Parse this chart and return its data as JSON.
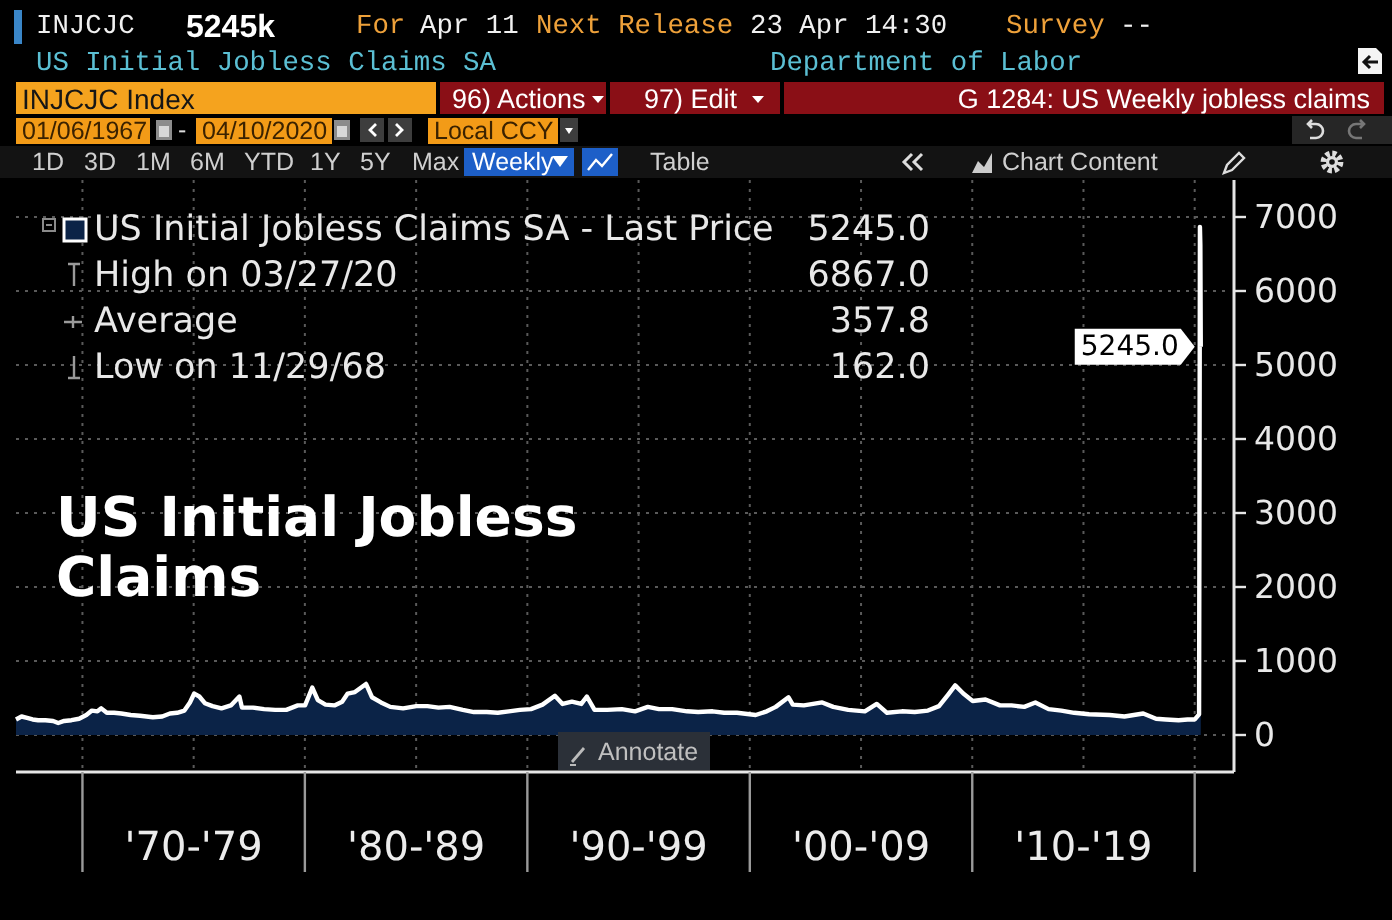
{
  "chart_data": {
    "type": "area",
    "title": "US Initial Jobless Claims",
    "x": [
      "1967-01-06",
      "1967-04-07",
      "1967-07-07",
      "1967-10-06",
      "1968-01-05",
      "1968-05-03",
      "1968-09-06",
      "1968-11-29",
      "1969-03-07",
      "1969-07-04",
      "1969-11-07",
      "1970-03-06",
      "1970-06-05",
      "1970-09-04",
      "1970-11-06",
      "1971-02-05",
      "1971-06-04",
      "1971-10-01",
      "1972-03-03",
      "1972-08-04",
      "1973-03-02",
      "1973-08-03",
      "1973-12-07",
      "1974-04-05",
      "1974-08-02",
      "1974-11-01",
      "1975-01-10",
      "1975-04-04",
      "1975-07-04",
      "1975-11-07",
      "1976-04-02",
      "1976-09-03",
      "1977-01-21",
      "1977-03-04",
      "1977-09-02",
      "1978-03-03",
      "1978-09-01",
      "1979-03-02",
      "1979-09-07",
      "1980-01-04",
      "1980-05-02",
      "1980-08-01",
      "1980-12-05",
      "1981-05-01",
      "1981-09-04",
      "1981-12-04",
      "1982-04-02",
      "1982-10-01",
      "1983-01-07",
      "1983-06-03",
      "1983-11-04",
      "1984-06-01",
      "1985-01-04",
      "1985-07-05",
      "1986-01-03",
      "1986-07-04",
      "1987-02-06",
      "1987-08-07",
      "1988-03-04",
      "1988-09-02",
      "1989-03-03",
      "1989-09-01",
      "1990-03-02",
      "1990-09-07",
      "1991-03-29",
      "1991-08-02",
      "1992-01-03",
      "1992-06-05",
      "1992-09-04",
      "1993-01-08",
      "1993-08-06",
      "1994-04-01",
      "1994-11-04",
      "1995-06-02",
      "1995-12-01",
      "1996-07-05",
      "1997-03-07",
      "1997-09-05",
      "1998-05-01",
      "1998-11-06",
      "1999-06-04",
      "2000-04-07",
      "2000-10-06",
      "2001-03-02",
      "2001-09-28",
      "2001-12-07",
      "2002-06-07",
      "2003-04-04",
      "2003-10-03",
      "2004-06-04",
      "2005-03-04",
      "2005-09-16",
      "2006-03-03",
      "2006-11-03",
      "2007-06-01",
      "2008-01-04",
      "2008-07-04",
      "2008-12-05",
      "2009-03-27",
      "2009-08-07",
      "2010-01-08",
      "2010-08-06",
      "2011-04-01",
      "2011-10-07",
      "2012-05-04",
      "2012-11-02",
      "2013-06-07",
      "2014-01-03",
      "2014-08-01",
      "2015-04-03",
      "2016-03-04",
      "2016-11-04",
      "2017-09-08",
      "2018-04-06",
      "2018-09-14",
      "2019-04-12",
      "2019-09-06",
      "2020-01-03",
      "2020-03-13",
      "2020-03-20",
      "2020-03-27",
      "2020-04-03",
      "2020-04-10"
    ],
    "series": [
      {
        "name": "US Initial Jobless Claims SA - Last Price",
        "color": "#0b2347",
        "values": [
          210,
          250,
          230,
          210,
          200,
          200,
          190,
          162,
          190,
          200,
          220,
          270,
          330,
          320,
          360,
          300,
          300,
          290,
          270,
          260,
          240,
          250,
          290,
          300,
          330,
          440,
          560,
          520,
          430,
          390,
          360,
          400,
          520,
          370,
          370,
          350,
          340,
          340,
          400,
          400,
          640,
          470,
          410,
          400,
          450,
          560,
          580,
          690,
          510,
          440,
          380,
          360,
          390,
          390,
          370,
          380,
          340,
          310,
          310,
          300,
          320,
          340,
          350,
          410,
          530,
          420,
          450,
          420,
          520,
          340,
          340,
          350,
          320,
          380,
          350,
          350,
          320,
          310,
          320,
          300,
          300,
          270,
          320,
          380,
          510,
          410,
          400,
          440,
          380,
          340,
          320,
          420,
          300,
          320,
          310,
          330,
          390,
          550,
          670,
          560,
          460,
          480,
          400,
          400,
          380,
          440,
          350,
          330,
          300,
          280,
          270,
          250,
          290,
          220,
          210,
          200,
          210,
          210,
          280,
          3300,
          6867,
          6620,
          5245
        ],
        "value_labels": [
          null,
          null,
          null,
          null,
          null,
          null,
          null,
          null,
          null,
          null,
          null,
          null,
          null,
          null,
          null,
          null,
          null,
          null,
          null,
          null,
          null,
          null,
          null,
          null,
          null,
          null,
          null,
          null,
          null,
          null,
          null,
          null,
          null,
          null,
          null,
          null,
          null,
          null,
          null,
          null,
          null,
          null,
          null,
          null,
          null,
          null,
          null,
          null,
          null,
          null,
          null,
          null,
          null,
          null,
          null,
          null,
          null,
          null,
          null,
          null,
          null,
          null,
          null,
          null,
          null,
          null,
          null,
          null,
          null,
          null,
          null,
          null,
          null,
          null,
          null,
          null,
          null,
          null,
          null,
          null,
          null,
          null,
          null,
          null,
          null,
          null,
          null,
          null,
          null,
          null,
          null,
          null,
          null,
          null,
          null,
          null,
          null,
          null,
          null,
          null,
          null,
          null,
          null,
          null,
          null,
          null,
          null,
          null,
          null,
          null,
          null,
          null,
          null,
          null,
          null,
          null,
          null,
          null,
          null,
          null,
          null,
          null,
          "5245.0"
        ]
      }
    ],
    "xlim": [
      "1967-01-06",
      "2021-07-01"
    ],
    "xticks": [
      {
        "value": "1970-01-01",
        "label": null
      },
      {
        "value": "1975-01-01",
        "label": "'70-'79"
      },
      {
        "value": "1980-01-01",
        "label": null
      },
      {
        "value": "1985-01-01",
        "label": "'80-'89"
      },
      {
        "value": "1990-01-01",
        "label": null
      },
      {
        "value": "1995-01-01",
        "label": "'90-'99"
      },
      {
        "value": "2000-01-01",
        "label": null
      },
      {
        "value": "2005-01-01",
        "label": "'00-'09"
      },
      {
        "value": "2010-01-01",
        "label": null
      },
      {
        "value": "2015-01-01",
        "label": "'10-'19"
      },
      {
        "value": "2020-01-01",
        "label": null
      }
    ],
    "ylim": [
      -500,
      7500
    ],
    "yticks": [
      0,
      1000,
      2000,
      3000,
      4000,
      5000,
      6000,
      7000
    ],
    "grid": true,
    "legend": "top left",
    "annotations": [
      "INJCJC",
      "5245k",
      "For",
      "Apr 11",
      "Next Release",
      "23 Apr 14:30",
      "Survey",
      "--",
      "US Initial Jobless Claims SA",
      "Department of Labor",
      "INJCJC Index",
      "96) Actions",
      "97) Edit",
      "G 1284: US Weekly jobless claims",
      "01/06/1967",
      "-",
      "04/10/2020",
      "Local CCY",
      "1D",
      "3D",
      "1M",
      "6M",
      "YTD",
      "1Y",
      "5Y",
      "Max",
      "Weekly",
      "Table",
      "Chart Content",
      "Annotate",
      "High on 03/27/20 6867.0",
      "Average 357.8",
      "Low on 11/29/68 162.0"
    ]
  }
}
